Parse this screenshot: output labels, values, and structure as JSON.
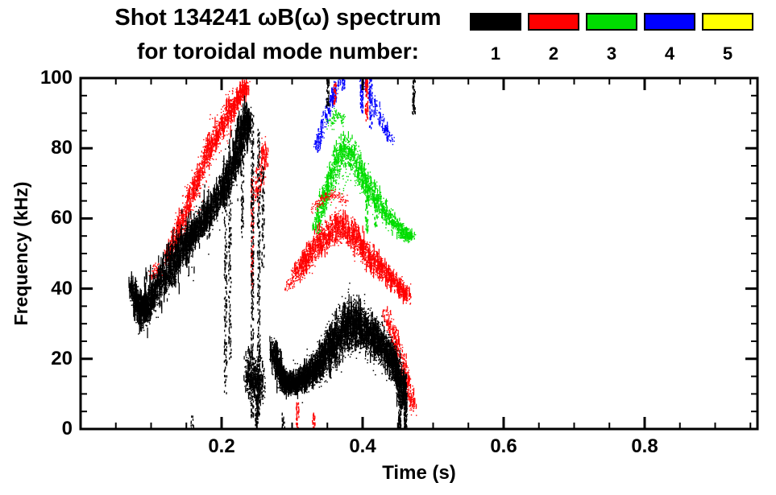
{
  "chart_data": {
    "type": "scatter",
    "title": "Shot 134241 ωB(ω) spectrum",
    "subtitle": "for toroidal mode number:",
    "xlabel": "Time (s)",
    "ylabel": "Frequency (kHz)",
    "xlim": [
      0,
      0.96
    ],
    "ylim": [
      0,
      100
    ],
    "x_major_ticks": [
      0.2,
      0.4,
      0.6,
      0.8
    ],
    "x_major_labels": [
      "0.2",
      "0.4",
      "0.6",
      "0.8"
    ],
    "x_minor_step": 0.05,
    "y_major_ticks": [
      0,
      20,
      40,
      60,
      80,
      100
    ],
    "y_major_labels": [
      "0",
      "20",
      "40",
      "60",
      "80",
      "100"
    ],
    "y_minor_step": 5,
    "grid": false,
    "legend_position": "top-right",
    "legend": [
      {
        "label": "1",
        "color": "#000000"
      },
      {
        "label": "2",
        "color": "#ff0000"
      },
      {
        "label": "3",
        "color": "#00dd00"
      },
      {
        "label": "4",
        "color": "#0000ff"
      },
      {
        "label": "5",
        "color": "#ffff00"
      }
    ],
    "series": [
      {
        "name": "5",
        "color": "#ffff00",
        "dot": 1.4,
        "bands": [],
        "spikes": []
      },
      {
        "name": "4",
        "color": "#0000ff",
        "dot": 1.4,
        "bands": [
          {
            "pts": [
              [
                0.333,
                80,
                2
              ],
              [
                0.341,
                85,
                2
              ],
              [
                0.35,
                91,
                2
              ],
              [
                0.357,
                95,
                2
              ],
              [
                0.364,
                99,
                1
              ]
            ],
            "n": 220,
            "streaky": 0.3
          },
          {
            "pts": [
              [
                0.398,
                100,
                1
              ],
              [
                0.408,
                96,
                2
              ],
              [
                0.419,
                91,
                2
              ],
              [
                0.43,
                86,
                2
              ],
              [
                0.44,
                82,
                1
              ]
            ],
            "n": 170,
            "streaky": 0.3
          }
        ],
        "spikes": [
          [
            0.398,
            90,
            100,
            55
          ],
          [
            0.411,
            86,
            100,
            45
          ],
          [
            0.372,
            97,
            100,
            18
          ]
        ]
      },
      {
        "name": "3",
        "color": "#00dd00",
        "dot": 1.4,
        "bands": [
          {
            "pts": [
              [
                0.332,
                58,
                3
              ],
              [
                0.342,
                64,
                4
              ],
              [
                0.352,
                70,
                4
              ],
              [
                0.362,
                76,
                5
              ],
              [
                0.372,
                80,
                5
              ],
              [
                0.382,
                79,
                5
              ],
              [
                0.392,
                75,
                5
              ],
              [
                0.402,
                71,
                4
              ],
              [
                0.415,
                67,
                4
              ],
              [
                0.43,
                62,
                3
              ],
              [
                0.443,
                59,
                3
              ],
              [
                0.457,
                56,
                2
              ],
              [
                0.47,
                55,
                2
              ]
            ],
            "n": 1600,
            "streaky": 0.25
          },
          {
            "pts": [
              [
                0.352,
                87,
                2
              ],
              [
                0.362,
                90,
                2
              ],
              [
                0.37,
                88,
                2
              ]
            ],
            "n": 90
          },
          {
            "pts": [
              [
                0.35,
                70,
                8
              ],
              [
                0.38,
                78,
                9
              ],
              [
                0.41,
                68,
                7
              ]
            ],
            "n": 180
          }
        ],
        "spikes": [
          [
            0.405,
            56,
            71,
            60
          ],
          [
            0.418,
            58,
            66,
            30
          ],
          [
            0.338,
            54,
            60,
            25
          ]
        ]
      },
      {
        "name": "2",
        "color": "#ff0000",
        "dot": 1.4,
        "bands": [
          {
            "pts": [
              [
                0.098,
                44,
                2
              ],
              [
                0.112,
                46,
                3
              ]
            ],
            "n": 90
          },
          {
            "pts": [
              [
                0.12,
                48,
                3
              ],
              [
                0.135,
                55,
                4
              ],
              [
                0.15,
                63,
                4
              ],
              [
                0.165,
                71,
                4
              ],
              [
                0.18,
                79,
                4
              ],
              [
                0.195,
                85,
                4
              ],
              [
                0.21,
                90,
                4
              ],
              [
                0.222,
                94,
                3
              ],
              [
                0.235,
                98,
                3
              ]
            ],
            "n": 1300,
            "streaky": 0.2,
            "wl": 14
          },
          {
            "pts": [
              [
                0.13,
                52,
                8
              ],
              [
                0.16,
                68,
                9
              ],
              [
                0.19,
                83,
                8
              ],
              [
                0.22,
                93,
                7
              ]
            ],
            "n": 200
          },
          {
            "pts": [
              [
                0.247,
                66,
                7
              ],
              [
                0.256,
                74,
                7
              ],
              [
                0.262,
                80,
                5
              ]
            ],
            "n": 160,
            "streaky": 0.4
          },
          {
            "pts": [
              [
                0.303,
                44,
                3
              ],
              [
                0.318,
                48,
                4
              ],
              [
                0.333,
                52,
                5
              ],
              [
                0.348,
                55,
                5
              ],
              [
                0.362,
                58,
                5
              ],
              [
                0.376,
                57,
                5
              ],
              [
                0.39,
                54,
                5
              ],
              [
                0.405,
                50,
                4
              ],
              [
                0.42,
                47,
                4
              ],
              [
                0.435,
                44,
                3
              ],
              [
                0.45,
                41,
                3
              ],
              [
                0.465,
                38,
                3
              ]
            ],
            "n": 2100,
            "streaky": 0.2,
            "wl": 12
          },
          {
            "pts": [
              [
                0.33,
                63,
                2
              ],
              [
                0.345,
                66,
                2
              ],
              [
                0.36,
                67,
                2
              ],
              [
                0.375,
                65,
                2
              ]
            ],
            "n": 140
          },
          {
            "pts": [
              [
                0.432,
                33,
                3
              ],
              [
                0.443,
                27,
                3
              ],
              [
                0.453,
                21,
                4
              ],
              [
                0.463,
                13,
                4
              ],
              [
                0.471,
                6,
                3
              ]
            ],
            "n": 420,
            "streaky": 0.25
          },
          {
            "pts": [
              [
                0.29,
                40,
                2
              ],
              [
                0.3,
                42,
                2
              ]
            ],
            "n": 40
          }
        ],
        "spikes": [
          [
            0.243,
            40,
            72,
            90
          ],
          [
            0.405,
            88,
            100,
            70
          ],
          [
            0.307,
            0,
            8,
            40
          ],
          [
            0.33,
            0,
            5,
            22
          ],
          [
            0.36,
            93,
            99,
            25
          ]
        ]
      },
      {
        "name": "1",
        "color": "#000000",
        "dot": 1.5,
        "bands": [
          {
            "pts": [
              [
                0.072,
                41,
                3
              ],
              [
                0.08,
                35,
                4
              ],
              [
                0.09,
                33,
                5
              ],
              [
                0.1,
                37,
                5
              ],
              [
                0.115,
                43,
                6
              ],
              [
                0.13,
                47,
                6
              ],
              [
                0.145,
                52,
                6
              ],
              [
                0.16,
                56,
                5
              ],
              [
                0.175,
                60,
                5
              ],
              [
                0.19,
                64,
                5
              ],
              [
                0.205,
                70,
                6
              ],
              [
                0.218,
                76,
                6
              ],
              [
                0.23,
                85,
                6
              ],
              [
                0.238,
                89,
                4
              ]
            ],
            "n": 2800,
            "streaky": 0.3,
            "wl": 20
          },
          {
            "pts": [
              [
                0.08,
                34,
                9
              ],
              [
                0.1,
                38,
                10
              ],
              [
                0.13,
                47,
                12
              ],
              [
                0.16,
                56,
                11
              ],
              [
                0.19,
                64,
                10
              ],
              [
                0.22,
                77,
                10
              ],
              [
                0.238,
                88,
                8
              ]
            ],
            "n": 450,
            "streaky": 0.5,
            "wl": 16
          },
          {
            "pts": [
              [
                0.235,
                17,
                7
              ],
              [
                0.245,
                14,
                8
              ],
              [
                0.257,
                13,
                7
              ]
            ],
            "n": 550,
            "streaky": 0.3
          },
          {
            "pts": [
              [
                0.272,
                23,
                4
              ],
              [
                0.282,
                16,
                4
              ],
              [
                0.292,
                13,
                3
              ],
              [
                0.305,
                13,
                3
              ],
              [
                0.32,
                15,
                4
              ],
              [
                0.335,
                18,
                5
              ],
              [
                0.35,
                22,
                7
              ],
              [
                0.365,
                27,
                8
              ],
              [
                0.378,
                30,
                8
              ],
              [
                0.392,
                30,
                8
              ],
              [
                0.405,
                28,
                7
              ],
              [
                0.42,
                25,
                6
              ],
              [
                0.435,
                22,
                5
              ],
              [
                0.448,
                17,
                5
              ],
              [
                0.458,
                9,
                6
              ]
            ],
            "n": 5200,
            "streaky": 0.25,
            "wl": 16
          },
          {
            "pts": [
              [
                0.3,
                14,
                6
              ],
              [
                0.34,
                19,
                9
              ],
              [
                0.38,
                30,
                12
              ],
              [
                0.42,
                26,
                10
              ],
              [
                0.45,
                15,
                9
              ]
            ],
            "n": 400
          }
        ],
        "spikes": [
          [
            0.205,
            10,
            65,
            130
          ],
          [
            0.211,
            18,
            70,
            110
          ],
          [
            0.229,
            55,
            88,
            80
          ],
          [
            0.243,
            3,
            90,
            260
          ],
          [
            0.252,
            4,
            87,
            220
          ],
          [
            0.258,
            46,
            76,
            70
          ],
          [
            0.249,
            1,
            10,
            60
          ],
          [
            0.46,
            0,
            16,
            170
          ],
          [
            0.452,
            0,
            10,
            80
          ],
          [
            0.35,
            92,
            100,
            45
          ],
          [
            0.472,
            90,
            100,
            55
          ],
          [
            0.158,
            0,
            4,
            12
          ],
          [
            0.287,
            0,
            5,
            18
          ]
        ]
      }
    ]
  }
}
